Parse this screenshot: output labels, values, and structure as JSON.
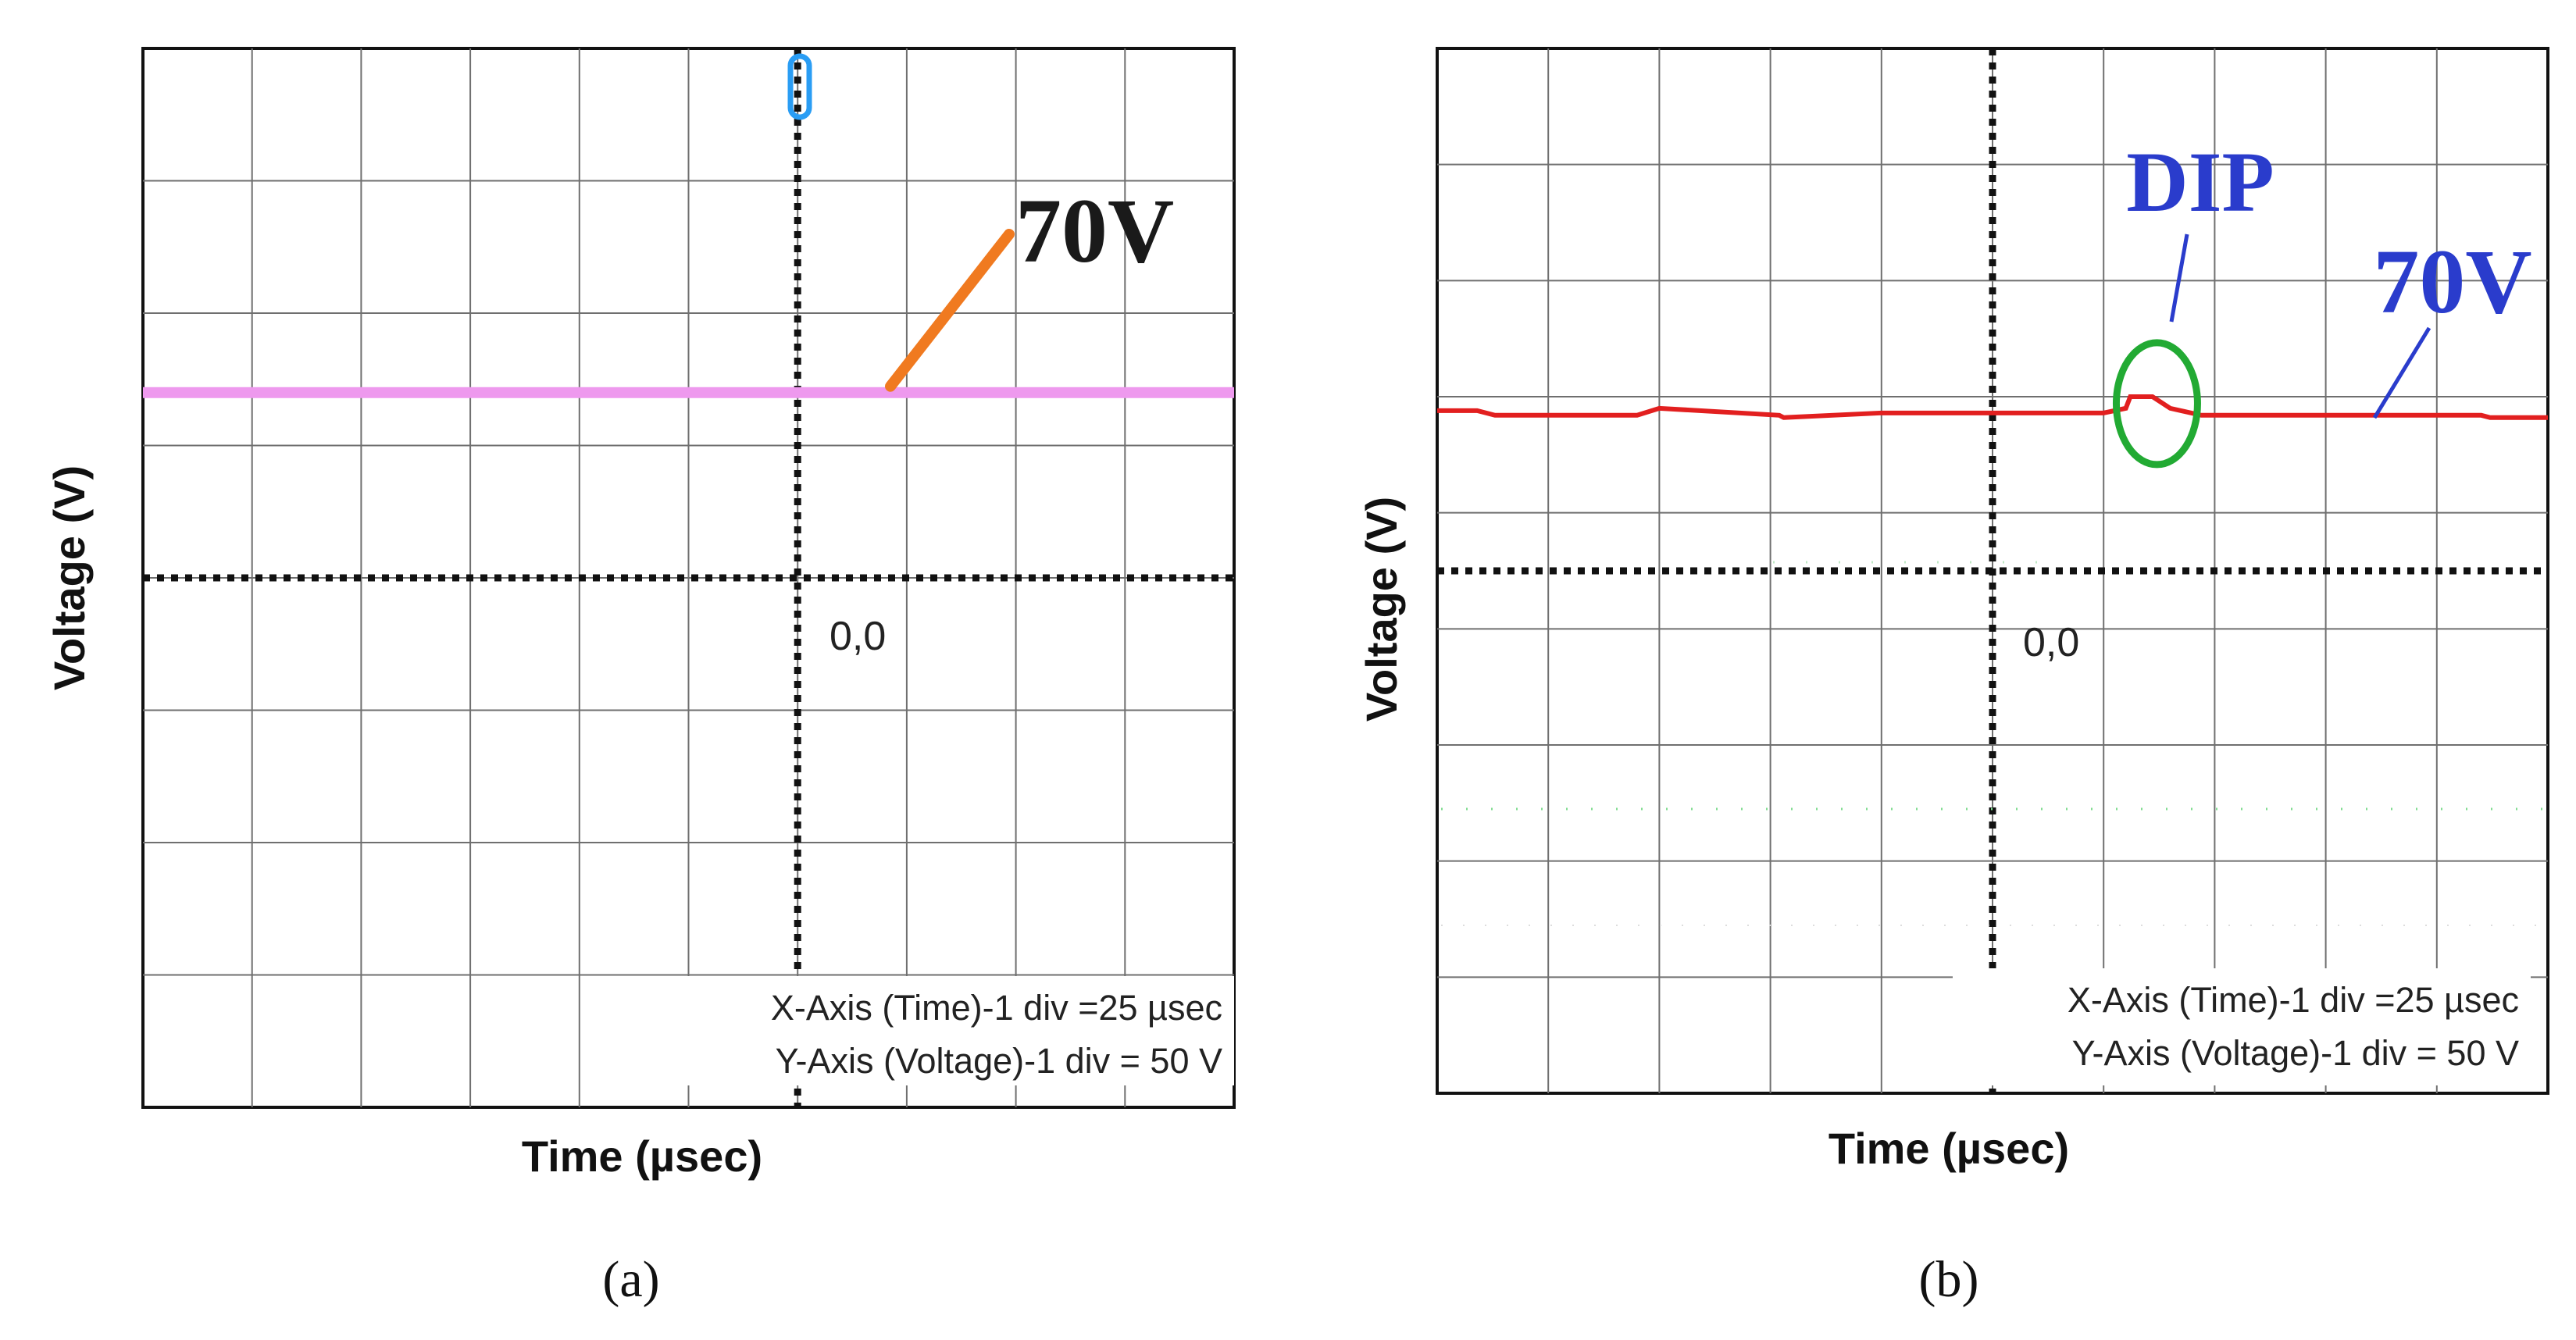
{
  "chart_data": [
    {
      "id": "a",
      "type": "line",
      "panel_label": "(a)",
      "xlabel": "Time (µsec)",
      "ylabel": "Voltage (V)",
      "x_unit_per_div": "25 µsec",
      "y_unit_per_div": "50 V",
      "xlim": [
        -150,
        100
      ],
      "ylim": [
        -200,
        200
      ],
      "origin_label": "0,0",
      "axis_note_x": "X-Axis (Time)-1 div =25 µsec",
      "axis_note_y": "Y-Axis (Voltage)-1 div = 50 V",
      "annotation": "70V",
      "series": [
        {
          "name": "Voltage",
          "color": "#ee99ee",
          "x": [
            -150,
            100
          ],
          "y": [
            70,
            70
          ]
        }
      ],
      "colors": {
        "arrow": "#f07a20",
        "annotation": "#1a1a1a",
        "trigger": "#2a9df4"
      }
    },
    {
      "id": "b",
      "type": "line",
      "panel_label": "(b)",
      "xlabel": "Time (µsec)",
      "ylabel": "Voltage (V)",
      "x_unit_per_div": "25 µsec",
      "y_unit_per_div": "50 V",
      "xlim": [
        -125,
        125
      ],
      "ylim": [
        -225,
        225
      ],
      "origin_label": "0,0",
      "axis_note_x": "X-Axis (Time)-1 div =25 µsec",
      "axis_note_y": "Y-Axis (Voltage)-1 div = 50 V",
      "annotation": "70V",
      "dip_label": "DIP",
      "series": [
        {
          "name": "Voltage",
          "color": "#e21f1f",
          "x": [
            -125,
            -116,
            -112,
            -95,
            -80,
            -75,
            -48,
            -47,
            -25,
            0,
            25,
            30,
            31,
            36,
            40,
            47,
            50,
            60,
            75,
            100,
            110,
            112,
            125
          ],
          "y": [
            69,
            69,
            67,
            67,
            67,
            70,
            67,
            66,
            68,
            68,
            68,
            70,
            75,
            75,
            70,
            67,
            67,
            67,
            67,
            67,
            67,
            66,
            66
          ]
        }
      ],
      "dip": {
        "x": 37,
        "y": 72
      },
      "colors": {
        "dip_circle": "#22aa33",
        "label": "#2a3ccc",
        "leader": "#2a3ccc"
      }
    }
  ]
}
